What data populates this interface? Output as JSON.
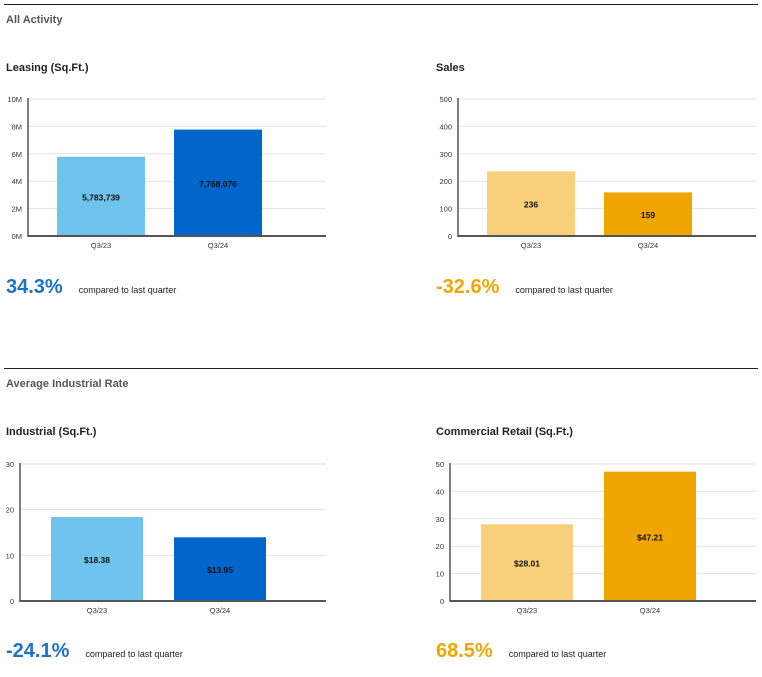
{
  "sections": [
    {
      "title": "All Activity"
    },
    {
      "title": "Average Industrial Rate"
    }
  ],
  "charts": [
    {
      "title": "Leasing (Sq.Ft.)",
      "change": "34.3%",
      "change_note": "compared to last quarter",
      "change_color": "#1b73c8"
    },
    {
      "title": "Sales",
      "change": "-32.6%",
      "change_note": "compared to last quarter",
      "change_color": "#f0a500"
    },
    {
      "title": "Industrial (Sq.Ft.)",
      "change": "-24.1%",
      "change_note": "compared to last quarter",
      "change_color": "#1b73c8"
    },
    {
      "title": "Commercial Retail (Sq.Ft.)",
      "change": "68.5%",
      "change_note": "compared to last quarter",
      "change_color": "#f0a500"
    }
  ],
  "chart_data": [
    {
      "type": "bar",
      "title": "Leasing (Sq.Ft.)",
      "categories": [
        "Q3/23",
        "Q3/24"
      ],
      "values": [
        5783739,
        7768076
      ],
      "data_labels": [
        "5,783,739",
        "7,768,076"
      ],
      "colors": [
        "#6ec4ec",
        "#0066cc"
      ],
      "ylim": [
        0,
        10000000
      ],
      "yticks": [
        0,
        2000000,
        4000000,
        6000000,
        8000000,
        10000000
      ],
      "ytick_labels": [
        "0M",
        "2M",
        "4M",
        "6M",
        "8M",
        "10M"
      ],
      "grid": true
    },
    {
      "type": "bar",
      "title": "Sales",
      "categories": [
        "Q3/23",
        "Q3/24"
      ],
      "values": [
        236,
        159
      ],
      "data_labels": [
        "236",
        "159"
      ],
      "colors": [
        "#f8d07a",
        "#f0a500"
      ],
      "ylim": [
        0,
        500
      ],
      "yticks": [
        0,
        100,
        200,
        300,
        400,
        500
      ],
      "ytick_labels": [
        "0",
        "100",
        "200",
        "300",
        "400",
        "500"
      ],
      "grid": true
    },
    {
      "type": "bar",
      "title": "Industrial (Sq.Ft.)",
      "categories": [
        "Q3/23",
        "Q3/24"
      ],
      "values": [
        18.38,
        13.95
      ],
      "data_labels": [
        "$18.38",
        "$13.95"
      ],
      "colors": [
        "#6ec4ec",
        "#0066cc"
      ],
      "ylim": [
        0,
        30
      ],
      "yticks": [
        0,
        10,
        20,
        30
      ],
      "ytick_labels": [
        "0",
        "10",
        "20",
        "30"
      ],
      "grid": true
    },
    {
      "type": "bar",
      "title": "Commercial Retail (Sq.Ft.)",
      "categories": [
        "Q3/23",
        "Q3/24"
      ],
      "values": [
        28.01,
        47.21
      ],
      "data_labels": [
        "$28.01",
        "$47.21"
      ],
      "colors": [
        "#f8d07a",
        "#f0a500"
      ],
      "ylim": [
        0,
        50
      ],
      "yticks": [
        0,
        10,
        20,
        30,
        40,
        50
      ],
      "ytick_labels": [
        "0",
        "10",
        "20",
        "30",
        "40",
        "50"
      ],
      "grid": true
    }
  ]
}
